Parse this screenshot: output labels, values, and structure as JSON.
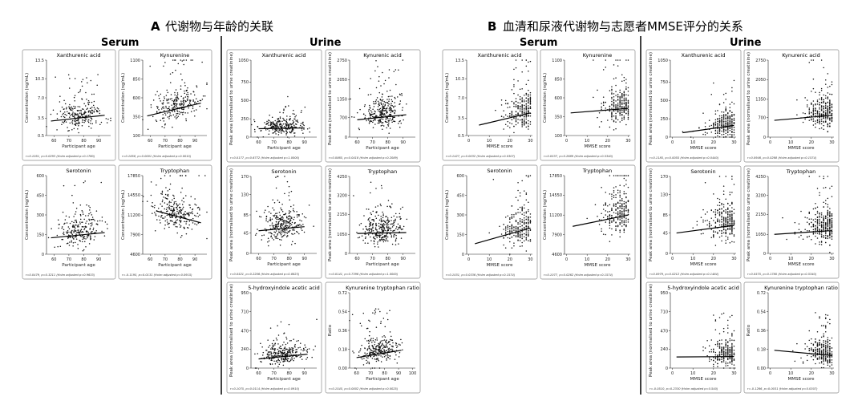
{
  "figure": {
    "section_a": {
      "letter": "A",
      "title": "代谢物与年龄的关联"
    },
    "section_b": {
      "letter": "B",
      "title": "血清和尿液代谢物与志愿者MMSE评分的关系"
    },
    "group_labels": {
      "serum": "Serum",
      "urine": "Urine"
    }
  },
  "axis_text": {
    "x_age": "Participant age",
    "x_mmse": "MMSE score",
    "y_serum_uM": "Concentration (ng/mL)",
    "y_urine": "Peak area (normalised to urine creatinine)",
    "y_ratio": "Ratio"
  },
  "chart_data": [
    {
      "id": "a-serum-xa",
      "type": "scatter",
      "title": "Xanthurenic acid",
      "xlabel": "Participant age",
      "ylabel": "Concentration (ng/mL)",
      "xticks": [
        60,
        70,
        80,
        90
      ],
      "yticks": [
        0.5,
        3.5,
        7.0,
        10.3,
        13.5
      ],
      "yticklabels": [
        "0.5",
        "3.5",
        "7.0",
        "10.3",
        "13.5"
      ],
      "xlim": [
        55,
        98
      ],
      "ylim": [
        0.5,
        13.5
      ],
      "center": [
        77,
        3.6
      ],
      "spread": [
        8,
        1.6
      ],
      "n": 240,
      "fit": [
        [
          58,
          3.0
        ],
        [
          94,
          4.0
        ]
      ],
      "stat": "r=0.1051, p=0.0293 (Holm adjusted p=0.1760)"
    },
    {
      "id": "a-serum-kyn",
      "type": "scatter",
      "title": "Kynurenine",
      "xlabel": "Participant age",
      "ylabel": "Concentration (ng/mL)",
      "xticks": [
        60,
        70,
        80,
        90
      ],
      "yticks": [
        100,
        350,
        600,
        850,
        1100
      ],
      "yticklabels": [
        "100",
        "350",
        "600",
        "850",
        "1100"
      ],
      "xlim": [
        55,
        98
      ],
      "ylim": [
        100,
        1100
      ],
      "center": [
        78,
        450
      ],
      "spread": [
        8,
        140
      ],
      "n": 260,
      "fit": [
        [
          58,
          360
        ],
        [
          94,
          530
        ]
      ],
      "stat": "r=0.1858, p=0.0001 (Holm adjusted p=0.0010)"
    },
    {
      "id": "a-serum-ser",
      "type": "scatter",
      "title": "Serotonin",
      "xlabel": "Participant age",
      "ylabel": "Concentration (ng/mL)",
      "xticks": [
        60,
        70,
        80,
        90
      ],
      "yticks": [
        0,
        150,
        300,
        450,
        600
      ],
      "yticklabels": [
        "0",
        "150",
        "300",
        "450",
        "600"
      ],
      "xlim": [
        55,
        98
      ],
      "ylim": [
        0,
        600
      ],
      "center": [
        77,
        150
      ],
      "spread": [
        8,
        80
      ],
      "n": 240,
      "fit": [
        [
          58,
          125
        ],
        [
          94,
          165
        ]
      ],
      "stat": "r=0.0479, p=0.3211 (Holm adjusted p=0.9633)"
    },
    {
      "id": "a-serum-trp",
      "type": "scatter",
      "title": "Tryptophan",
      "xlabel": "Participant age",
      "ylabel": "Concentration (ng/mL)",
      "xticks": [
        60,
        70,
        80,
        90
      ],
      "yticks": [
        4600,
        7900,
        11200,
        14550,
        17850
      ],
      "yticklabels": [
        "4600",
        "7900",
        "11200",
        "14550",
        "17850"
      ],
      "xlim": [
        55,
        98
      ],
      "ylim": [
        4600,
        17850
      ],
      "center": [
        78,
        11000
      ],
      "spread": [
        8,
        2200
      ],
      "n": 260,
      "fit": [
        [
          64,
          11900
        ],
        [
          94,
          9900
        ]
      ],
      "stat": "r=-0.1195, p=0.0131 (Holm adjusted p=0.0915)"
    },
    {
      "id": "a-urine-xa",
      "type": "scatter",
      "title": "Xanthurenic acid",
      "xlabel": "Participant age",
      "ylabel": "Peak area (normalised to urine creatinine)",
      "xticks": [
        60,
        70,
        80,
        90
      ],
      "yticks": [
        0,
        250,
        500,
        750,
        1050
      ],
      "yticklabels": [
        "0",
        "250",
        "500",
        "750",
        "1050"
      ],
      "xlim": [
        55,
        98
      ],
      "ylim": [
        0,
        1050
      ],
      "center": [
        76,
        120
      ],
      "spread": [
        7,
        80
      ],
      "n": 260,
      "fit": [
        [
          60,
          115
        ],
        [
          90,
          125
        ]
      ],
      "stat": "r=0.0177, p=0.6772 (Holm adjusted p=1.0000)"
    },
    {
      "id": "a-urine-kyna",
      "type": "scatter",
      "title": "Kynurenic acid",
      "xlabel": "Participant age",
      "ylabel": "Peak area (normalised to urine creatinine)",
      "xticks": [
        60,
        70,
        80,
        90
      ],
      "yticks": [
        0,
        700,
        1350,
        2050,
        2750
      ],
      "yticklabels": [
        "0",
        "700",
        "1350",
        "2050",
        "2750"
      ],
      "xlim": [
        55,
        98
      ],
      "ylim": [
        0,
        2750
      ],
      "center": [
        77,
        750
      ],
      "spread": [
        7,
        380
      ],
      "n": 300,
      "fit": [
        [
          60,
          620
        ],
        [
          92,
          800
        ]
      ],
      "stat": "r=0.0865, p=0.0418 (Holm adjusted p=0.2089)"
    },
    {
      "id": "a-urine-ser",
      "type": "scatter",
      "title": "Serotonin",
      "xlabel": "Participant age",
      "ylabel": "Peak area (normalised to urine creatinine)",
      "xticks": [
        60,
        70,
        80,
        90
      ],
      "yticks": [
        0,
        45,
        85,
        130,
        170
      ],
      "yticklabels": [
        "0",
        "45",
        "85",
        "130",
        "170"
      ],
      "xlim": [
        55,
        98
      ],
      "ylim": [
        0,
        170
      ],
      "center": [
        76,
        55
      ],
      "spread": [
        7,
        25
      ],
      "n": 290,
      "fit": [
        [
          60,
          50
        ],
        [
          90,
          59
        ]
      ],
      "stat": "r=0.0521, p=0.2206 (Holm adjusted p=0.8823)"
    },
    {
      "id": "a-urine-trp",
      "type": "scatter",
      "title": "Tryptophan",
      "xlabel": "Participant age",
      "ylabel": "Peak area (normalised to urine creatinine)",
      "xticks": [
        60,
        70,
        80,
        90
      ],
      "yticks": [
        0,
        1050,
        2150,
        3200,
        4250
      ],
      "yticklabels": [
        "0",
        "1050",
        "2150",
        "3200",
        "4250"
      ],
      "xlim": [
        55,
        98
      ],
      "ylim": [
        0,
        4250
      ],
      "center": [
        76,
        1150
      ],
      "spread": [
        7,
        550
      ],
      "n": 300,
      "fit": [
        [
          60,
          1100
        ],
        [
          92,
          1150
        ]
      ],
      "stat": "r=0.0141, p=0.7396 (Holm adjusted p=1.0000)"
    },
    {
      "id": "a-urine-5hiaa",
      "type": "scatter",
      "title": "5-hydroxyindole acetic acid",
      "xlabel": "Participant age",
      "ylabel": "Peak area (normalised to urine creatinine)",
      "xticks": [
        60,
        70,
        80,
        90
      ],
      "yticks": [
        0,
        240,
        470,
        710,
        950
      ],
      "yticklabels": [
        "0",
        "240",
        "470",
        "710",
        "950"
      ],
      "xlim": [
        55,
        98
      ],
      "ylim": [
        0,
        950
      ],
      "center": [
        76,
        140
      ],
      "spread": [
        7,
        90
      ],
      "n": 280,
      "fit": [
        [
          60,
          115
        ],
        [
          92,
          175
        ]
      ],
      "stat": "r=0.1075, p=0.0114 (Holm adjusted p=0.0910)"
    },
    {
      "id": "a-urine-ratio",
      "type": "scatter",
      "title": "Kynurenine tryptophan ratio",
      "xlabel": "Participant age",
      "ylabel": "Ratio",
      "xticks": [
        60,
        70,
        80,
        90,
        100
      ],
      "yticks": [
        0.0,
        0.18,
        0.36,
        0.54,
        0.72
      ],
      "yticklabels": [
        "0.00",
        "0.18",
        "0.36",
        "0.54",
        "0.72"
      ],
      "xlim": [
        55,
        102
      ],
      "ylim": [
        0.0,
        0.72
      ],
      "center": [
        76,
        0.15
      ],
      "spread": [
        7,
        0.08
      ],
      "n": 280,
      "fit": [
        [
          60,
          0.1
        ],
        [
          92,
          0.17
        ]
      ],
      "stat": "r=0.1545, p=0.0002 (Holm adjusted p=0.0025)"
    },
    {
      "id": "b-serum-xa",
      "type": "scatter",
      "title": "Xanthurenic acid",
      "xlabel": "MMSE score",
      "ylabel": "Concentration (ng/mL)",
      "xticks": [
        0,
        10,
        20,
        30
      ],
      "yticks": [
        0.5,
        3.5,
        7.0,
        10.3,
        13.5
      ],
      "yticklabels": [
        "0.5",
        "3.5",
        "7.0",
        "10.3",
        "13.5"
      ],
      "xlim": [
        -1,
        31
      ],
      "ylim": [
        0.5,
        13.5
      ],
      "center": [
        24,
        3.8
      ],
      "spread": [
        6,
        2
      ],
      "n": 260,
      "fit": [
        [
          5,
          2.3
        ],
        [
          30,
          4.4
        ]
      ],
      "stat": "r=0.1427, p=0.0032 (Holm adjusted p=0.0307)"
    },
    {
      "id": "b-serum-kyn",
      "type": "scatter",
      "title": "Kynurenine",
      "xlabel": "MMSE score",
      "ylabel": "Concentration (ng/mL)",
      "xticks": [
        0,
        10,
        20,
        30
      ],
      "yticks": [
        100,
        350,
        600,
        850,
        1100
      ],
      "yticklabels": [
        "100",
        "350",
        "600",
        "850",
        "1100"
      ],
      "xlim": [
        -1,
        31
      ],
      "ylim": [
        100,
        1100
      ],
      "center": [
        24,
        460
      ],
      "spread": [
        6,
        150
      ],
      "n": 260,
      "fit": [
        [
          2,
          400
        ],
        [
          30,
          460
        ]
      ],
      "stat": "r=0.0537, p=0.2689 (Holm adjusted p=0.5340)"
    },
    {
      "id": "b-serum-ser",
      "type": "scatter",
      "title": "Serotonin",
      "xlabel": "MMSE score",
      "ylabel": "Concentration (ng/mL)",
      "xticks": [
        0,
        10,
        20,
        30
      ],
      "yticks": [
        0,
        150,
        300,
        450,
        600
      ],
      "yticklabels": [
        "0",
        "150",
        "300",
        "450",
        "600"
      ],
      "xlim": [
        -1,
        31
      ],
      "ylim": [
        0,
        600
      ],
      "center": [
        24,
        170
      ],
      "spread": [
        6,
        90
      ],
      "n": 240,
      "fit": [
        [
          3,
          80
        ],
        [
          30,
          200
        ]
      ],
      "stat": "r=0.1031, p=0.0336 (Holm adjusted p=0.1574)"
    },
    {
      "id": "b-serum-trp",
      "type": "scatter",
      "title": "Tryptophan",
      "xlabel": "MMSE score",
      "ylabel": "Concentration (ng/mL)",
      "xticks": [
        0,
        10,
        20,
        30
      ],
      "yticks": [
        4600,
        7900,
        11200,
        14550,
        17850
      ],
      "yticklabels": [
        "4600",
        "7900",
        "11200",
        "14550",
        "17850"
      ],
      "xlim": [
        -1,
        31
      ],
      "ylim": [
        4600,
        17850
      ],
      "center": [
        24,
        11000
      ],
      "spread": [
        6,
        2300
      ],
      "n": 260,
      "fit": [
        [
          3,
          9300
        ],
        [
          30,
          11200
        ]
      ],
      "stat": "r=0.1077, p=0.0262 (Holm adjusted p=0.1574)"
    },
    {
      "id": "b-urine-xa",
      "type": "scatter",
      "title": "Xanthurenic acid",
      "xlabel": "MMSE score",
      "ylabel": "Peak area (normalised to urine creatinine)",
      "xticks": [
        0,
        10,
        20,
        30
      ],
      "yticks": [
        0,
        250,
        500,
        750,
        1050
      ],
      "yticklabels": [
        "0",
        "250",
        "500",
        "750",
        "1050"
      ],
      "xlim": [
        -1,
        31
      ],
      "ylim": [
        0,
        1050
      ],
      "center": [
        24,
        150
      ],
      "spread": [
        6,
        120
      ],
      "n": 280,
      "fit": [
        [
          5,
          60
        ],
        [
          30,
          160
        ]
      ],
      "stat": "r=0.1185, p=0.0055 (Holm adjusted p=0.0440)"
    },
    {
      "id": "b-urine-kyna",
      "type": "scatter",
      "title": "Kynurenic acid",
      "xlabel": "MMSE score",
      "ylabel": "Peak area (normalised to urine creatinine)",
      "xticks": [
        0,
        10,
        20,
        30
      ],
      "yticks": [
        0,
        700,
        1350,
        2050,
        2750
      ],
      "yticklabels": [
        "0",
        "700",
        "1350",
        "2050",
        "2750"
      ],
      "xlim": [
        -1,
        31
      ],
      "ylim": [
        0,
        2750
      ],
      "center": [
        24,
        800
      ],
      "spread": [
        6,
        400
      ],
      "n": 300,
      "fit": [
        [
          2,
          600
        ],
        [
          30,
          780
        ]
      ],
      "stat": "r=0.0946, p=0.0268 (Holm adjusted p=0.1574)"
    },
    {
      "id": "b-urine-ser",
      "type": "scatter",
      "title": "Serotonin",
      "xlabel": "MMSE score",
      "ylabel": "Peak area (normalised to urine creatinine)",
      "xticks": [
        0,
        10,
        20,
        30
      ],
      "yticks": [
        0,
        45,
        85,
        130,
        170
      ],
      "yticklabels": [
        "0",
        "45",
        "85",
        "130",
        "170"
      ],
      "xlim": [
        -1,
        31
      ],
      "ylim": [
        0,
        170
      ],
      "center": [
        24,
        60
      ],
      "spread": [
        6,
        28
      ],
      "n": 290,
      "fit": [
        [
          2,
          45
        ],
        [
          30,
          62
        ]
      ],
      "stat": "r=0.0979, p=0.0212 (Holm adjusted p=0.1484)"
    },
    {
      "id": "b-urine-trp",
      "type": "scatter",
      "title": "Tryptophan",
      "xlabel": "MMSE score",
      "ylabel": "Peak area (normalised to urine creatinine)",
      "xticks": [
        0,
        10,
        20,
        30
      ],
      "yticks": [
        0,
        1050,
        2150,
        3200,
        4250
      ],
      "yticklabels": [
        "0",
        "1050",
        "2150",
        "3200",
        "4250"
      ],
      "xlim": [
        -1,
        31
      ],
      "ylim": [
        0,
        4250
      ],
      "center": [
        24,
        1250
      ],
      "spread": [
        6,
        600
      ],
      "n": 300,
      "fit": [
        [
          2,
          1050
        ],
        [
          30,
          1260
        ]
      ],
      "stat": "r=0.0575, p=0.1780 (Holm adjusted p=0.5340)"
    },
    {
      "id": "b-urine-5hiaa",
      "type": "scatter",
      "title": "5-hydroxyindole acetic acid",
      "xlabel": "MMSE score",
      "ylabel": "Peak area (normalised to urine creatinine)",
      "xticks": [
        0,
        10,
        20,
        30
      ],
      "yticks": [
        0,
        240,
        470,
        710,
        950
      ],
      "yticklabels": [
        "0",
        "240",
        "470",
        "710",
        "950"
      ],
      "xlim": [
        -1,
        31
      ],
      "ylim": [
        0,
        950
      ],
      "center": [
        24,
        150
      ],
      "spread": [
        6,
        100
      ],
      "n": 280,
      "fit": [
        [
          2,
          140
        ],
        [
          30,
          145
        ]
      ],
      "stat": "r=-0.0510, p=0.2330 (Holm adjusted p=0.540)"
    },
    {
      "id": "b-urine-ratio",
      "type": "scatter",
      "title": "Kynurenine tryptophan ratio",
      "xlabel": "MMSE score",
      "ylabel": "Ratio",
      "xticks": [
        0,
        10,
        20,
        30
      ],
      "yticks": [
        0.0,
        0.18,
        0.36,
        0.54,
        0.72
      ],
      "yticklabels": [
        "0.00",
        "0.18",
        "0.36",
        "0.54",
        "0.72"
      ],
      "xlim": [
        -1,
        31
      ],
      "ylim": [
        0.0,
        0.72
      ],
      "center": [
        24,
        0.14
      ],
      "spread": [
        6,
        0.08
      ],
      "n": 280,
      "fit": [
        [
          2,
          0.17
        ],
        [
          30,
          0.12
        ]
      ],
      "stat": "r=-0.1266, p=0.0031 (Holm adjusted p=0.0307)"
    }
  ]
}
